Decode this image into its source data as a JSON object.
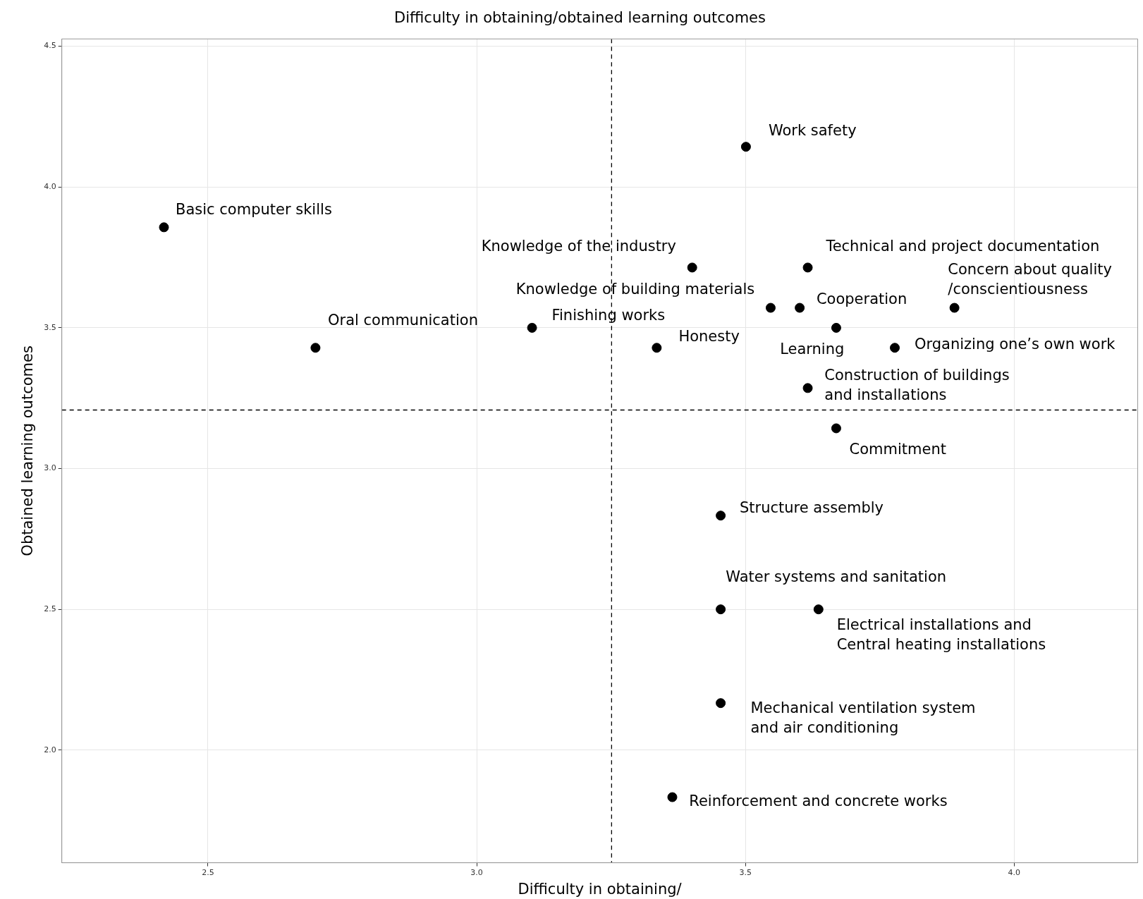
{
  "chart_data": {
    "type": "scatter",
    "title": "Difficulty in obtaining/obtained learning outcomes",
    "xlabel": "Difficulty in obtaining/",
    "ylabel": "Obtained learning outcomes",
    "x": [
      2.418,
      2.7,
      3.103,
      3.335,
      3.401,
      3.501,
      3.547,
      3.601,
      3.616,
      3.669,
      3.778,
      3.889,
      3.616,
      3.669,
      3.454,
      3.454,
      3.636,
      3.454,
      3.364
    ],
    "series": [
      {
        "color": "#000000",
        "values": [
          3.857,
          3.429,
          3.5,
          3.429,
          3.714,
          4.143,
          3.571,
          3.571,
          3.714,
          3.5,
          3.429,
          3.571,
          3.286,
          3.143,
          2.833,
          2.5,
          2.5,
          2.167,
          1.833
        ]
      }
    ],
    "xlim": [
      2.228,
      4.23
    ],
    "xticks": [
      2.5,
      {
        "value": 3,
        "label": "3.0"
      },
      3.5,
      {
        "value": 4,
        "label": "4.0"
      }
    ],
    "ylim": [
      1.6,
      4.526
    ],
    "yticks": [
      {
        "value": 2,
        "label": "2.0"
      },
      2.5,
      {
        "value": 3,
        "label": "3.0"
      },
      3.5,
      {
        "value": 4,
        "label": "4.0"
      },
      4.5
    ],
    "ref_lines": [
      {
        "axis": "x",
        "value": 3.251,
        "line_style": "dashed",
        "color": "#000000"
      },
      {
        "axis": "y",
        "value": 3.208,
        "line_style": "dashed",
        "color": "#000000"
      }
    ],
    "annotations": [
      {
        "text": "Basic computer skills",
        "x": 2.418,
        "y": 3.857
      },
      {
        "text": "Oral communication",
        "x": 2.7,
        "y": 3.429
      },
      {
        "text": "Finishing works",
        "x": 3.103,
        "y": 3.5
      },
      {
        "text": "Honesty",
        "x": 3.335,
        "y": 3.429
      },
      {
        "text": "Knowledge of the industry",
        "x": 3.401,
        "y": 3.714
      },
      {
        "text": "Work safety",
        "x": 3.501,
        "y": 4.143
      },
      {
        "text": "Knowledge of building materials",
        "x": 3.547,
        "y": 3.571
      },
      {
        "text": "Cooperation",
        "x": 3.601,
        "y": 3.571
      },
      {
        "text": "Technical and project documentation",
        "x": 3.616,
        "y": 3.714
      },
      {
        "text": "Learning",
        "x": 3.669,
        "y": 3.5
      },
      {
        "text": "Organizing one’s own work",
        "x": 3.778,
        "y": 3.429
      },
      {
        "text": "Concern about quality\n/conscientiousness",
        "x": 3.889,
        "y": 3.571
      },
      {
        "text": "Construction of buildings\nand installations",
        "x": 3.616,
        "y": 3.286
      },
      {
        "text": "Commitment",
        "x": 3.669,
        "y": 3.143
      },
      {
        "text": "Structure assembly",
        "x": 3.454,
        "y": 2.833
      },
      {
        "text": "Water systems and sanitation",
        "x": 3.454,
        "y": 2.5
      },
      {
        "text": "Electrical installations and\nCentral heating installations",
        "x": 3.636,
        "y": 2.5
      },
      {
        "text": "Mechanical ventilation system\nand air conditioning",
        "x": 3.454,
        "y": 2.167
      },
      {
        "text": "Reinforcement and concrete works",
        "x": 3.364,
        "y": 1.833
      }
    ],
    "grid": true,
    "legend": false,
    "marker": "circle"
  }
}
